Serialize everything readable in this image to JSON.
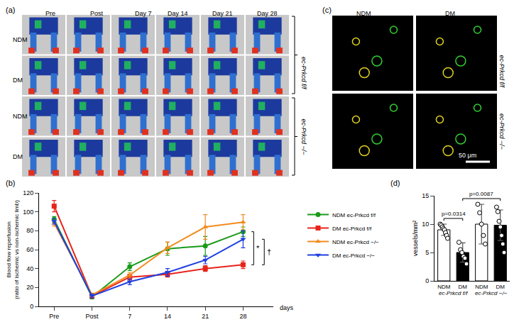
{
  "chart_data": [
    {
      "type": "line",
      "panel": "(b)",
      "categories": [
        "Pre",
        "Post",
        "7",
        "14",
        "21",
        "28"
      ],
      "x_label": "days",
      "y_label": [
        "Blood flow reperfusion",
        "(ratio of ischemic vs non-ischemic limb)"
      ],
      "ylim": [
        0,
        120
      ],
      "yticks": [
        0,
        20,
        40,
        60,
        80,
        100,
        120
      ],
      "grid": false,
      "legend": "right",
      "series": [
        {
          "name": "NDM ec-Prkcd f/f",
          "color": "#1a9a1a",
          "marker": "circle",
          "values": [
            92,
            10,
            42,
            61,
            64,
            79
          ],
          "errors": [
            3,
            2,
            4,
            7,
            10,
            5
          ]
        },
        {
          "name": "DM ec-Prkcd f/f",
          "color": "#e8231b",
          "marker": "square",
          "values": [
            106,
            11,
            31,
            34,
            40,
            44
          ],
          "errors": [
            6,
            2,
            3,
            3,
            3,
            4
          ]
        },
        {
          "name": "NDM ec-Prkcd −/−",
          "color": "#f28c1e",
          "marker": "triangle-up",
          "values": [
            88,
            12,
            33,
            62,
            84,
            89
          ],
          "errors": [
            3,
            2,
            3,
            6,
            13,
            8
          ]
        },
        {
          "name": "DM ec-Prkcd −/−",
          "color": "#1f3fe0",
          "marker": "triangle-down",
          "values": [
            90,
            11,
            26,
            36,
            49,
            71
          ],
          "errors": [
            3,
            2,
            3,
            4,
            4,
            9
          ]
        }
      ],
      "annotations": [
        {
          "text": "*",
          "between": [
            "NDM ec-Prkcd f/f",
            "DM ec-Prkcd f/f"
          ]
        },
        {
          "text": "†",
          "between": [
            "DM ec-Prkcd −/−",
            "DM ec-Prkcd f/f"
          ]
        }
      ]
    },
    {
      "type": "bar",
      "panel": "(d)",
      "categories": [
        "NDM",
        "DM",
        "NDM",
        "DM"
      ],
      "groups": [
        {
          "label": "ec-Prkcd f/f",
          "categories": [
            "NDM",
            "DM"
          ]
        },
        {
          "label": "ec-Prkcd −/−",
          "categories": [
            "NDM",
            "DM"
          ]
        }
      ],
      "y_label": "vessels/mm²",
      "ylim": [
        0,
        15
      ],
      "yticks": [
        0,
        5,
        10,
        15
      ],
      "grid": false,
      "values": [
        9,
        5,
        10,
        9.8
      ],
      "errors": [
        1,
        1.7,
        3.5,
        2.7
      ],
      "colors": [
        "#ffffff",
        "#000000",
        "#ffffff",
        "#000000"
      ],
      "points": [
        [
          10,
          9.8,
          9.5,
          9.2,
          9,
          8.5,
          8,
          7.5
        ],
        [
          6.8,
          5.5,
          5,
          4.3,
          4,
          3
        ],
        [
          13.5,
          12,
          10,
          8,
          6.5
        ],
        [
          13,
          12.2,
          10.5,
          9.5,
          8,
          6.5,
          5
        ]
      ],
      "comparisons": [
        {
          "text": "p=0.0314",
          "between": [
            0,
            1
          ]
        },
        {
          "text": "p=0.0087",
          "between": [
            1,
            3
          ]
        }
      ]
    }
  ],
  "image_panels": [
    {
      "panel": "(a)",
      "columns": [
        "Pre",
        "Post",
        "Day 7",
        "Day 14",
        "Day 21",
        "Day 28"
      ],
      "row_groups": [
        {
          "label": "ec-Prkcd f/f",
          "rows": [
            "NDM",
            "DM"
          ]
        },
        {
          "label": "ec-Prkcd −/−",
          "rows": [
            "NDM",
            "DM"
          ]
        }
      ]
    },
    {
      "panel": "(c)",
      "columns": [
        "NDM",
        "DM"
      ],
      "rows": [
        "ec-Prkcd f/f",
        "ec-Prkcd −/−"
      ],
      "scale_bar": "50 μm"
    }
  ]
}
